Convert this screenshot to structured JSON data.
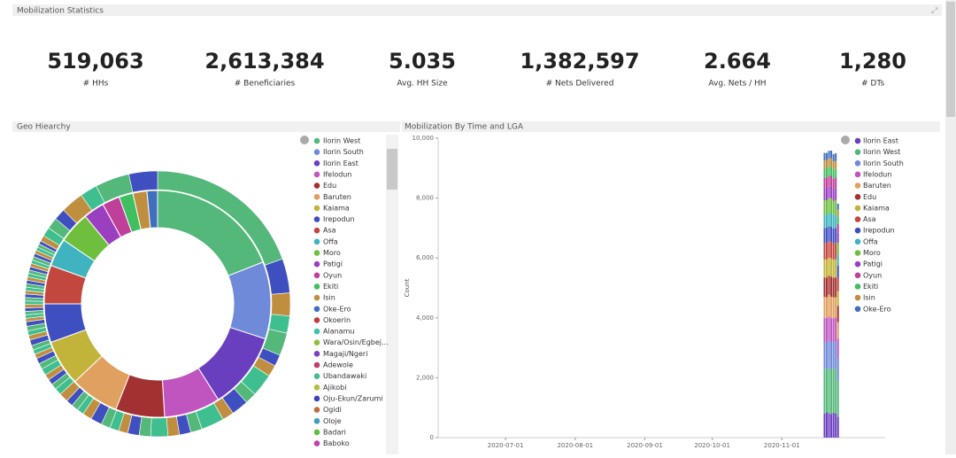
{
  "header": {
    "title": "Mobilization Statistics"
  },
  "metrics": [
    {
      "value": "519,063",
      "label": "# HHs"
    },
    {
      "value": "2,613,384",
      "label": "# Beneficiaries"
    },
    {
      "value": "5.035",
      "label": "Avg. HH Size"
    },
    {
      "value": "1,382,597",
      "label": "# Nets Delivered"
    },
    {
      "value": "2.664",
      "label": "Avg. Nets / HH"
    },
    {
      "value": "1,280",
      "label": "# DTs"
    }
  ],
  "donut": {
    "type": "pie",
    "title": "Geo Hiearchy",
    "slices": [
      {
        "name": "Ilorin West",
        "color": "#54b87a",
        "value": 19
      },
      {
        "name": "Ilorin South",
        "color": "#6f8ad8",
        "value": 11
      },
      {
        "name": "Ilorin East",
        "color": "#6a3fbf",
        "value": 11
      },
      {
        "name": "Ifelodun",
        "color": "#c055c0",
        "value": 8
      },
      {
        "name": "Edu",
        "color": "#a33131",
        "value": 7
      },
      {
        "name": "Baruten",
        "color": "#e0a060",
        "value": 7
      },
      {
        "name": "Kaiama",
        "color": "#c2b33a",
        "value": 6.5
      },
      {
        "name": "Irepodun",
        "color": "#3f4fbf",
        "value": 5.5
      },
      {
        "name": "Asa",
        "color": "#c2483f",
        "value": 5.5
      },
      {
        "name": "Offa",
        "color": "#3fb3bf",
        "value": 4
      },
      {
        "name": "Moro",
        "color": "#6fbf3f",
        "value": 4.5
      },
      {
        "name": "Patigi",
        "color": "#9a3fbf",
        "value": 3
      },
      {
        "name": "Oyun",
        "color": "#bf3f9a",
        "value": 2.5
      },
      {
        "name": "Ekiti",
        "color": "#3fbf5f",
        "value": 2
      },
      {
        "name": "Isin",
        "color": "#bf8f3f",
        "value": 2
      },
      {
        "name": "Oke-Ero",
        "color": "#3f6fbf",
        "value": 1.5
      }
    ],
    "wards": [
      {
        "name": "Okoerin",
        "color": "#bf3f3f"
      },
      {
        "name": "Alanamu",
        "color": "#3fbfaf"
      },
      {
        "name": "Wara/Osin/Egbej...",
        "color": "#8fbf3f"
      },
      {
        "name": "Magaji/Ngeri",
        "color": "#7f3fbf"
      },
      {
        "name": "Adewole",
        "color": "#bf3f6f"
      },
      {
        "name": "Ubandawaki",
        "color": "#3fbf8f"
      },
      {
        "name": "Ajikobi",
        "color": "#afbf3f"
      },
      {
        "name": "Oju-Ekun/Zarumi",
        "color": "#3f3fbf"
      },
      {
        "name": "Ogidi",
        "color": "#bf6f3f"
      },
      {
        "name": "Oloje",
        "color": "#3f9fbf"
      },
      {
        "name": "Badari",
        "color": "#5fbf3f"
      },
      {
        "name": "Baboko",
        "color": "#bf3faf"
      }
    ],
    "outer_values": [
      14,
      3,
      2,
      1.5,
      2,
      1,
      1,
      2,
      1,
      1.5,
      1,
      2,
      1,
      1,
      1,
      1.5,
      1,
      1,
      0.8,
      0.8,
      0.8,
      1,
      0.8,
      0.6,
      0.6,
      0.6,
      0.8,
      0.6,
      0.5,
      0.5,
      0.5,
      0.6,
      0.5,
      0.5,
      0.4,
      0.4,
      0.4,
      0.5,
      0.4,
      0.4,
      0.4,
      0.4,
      0.3,
      0.3,
      0.3,
      0.3,
      0.3,
      0.3,
      0.3,
      0.3,
      0.3,
      0.3,
      0.3,
      0.3,
      0.3,
      0.3,
      0.3,
      0.3,
      0.3,
      0.3,
      0.3,
      0.3,
      0.3,
      0.3,
      0.3,
      0.3,
      0.5,
      0.8,
      1,
      1,
      2,
      1.5,
      3,
      2.5
    ]
  },
  "bar_chart": {
    "type": "bar",
    "title": "Mobilization By Time and LGA",
    "y_label": "Count",
    "x": [
      "2020-11-20",
      "2020-11-21",
      "2020-11-22",
      "2020-11-23",
      "2020-11-24",
      "2020-11-25",
      "2020-11-26"
    ],
    "xlim": [
      "2020-06-01",
      "2020-12-17"
    ],
    "xticks": [
      "2020-07-01",
      "2020-08-01",
      "2020-09-01",
      "2020-10-01",
      "2020-11-01"
    ],
    "ylim": [
      0,
      10000
    ],
    "yticks": [
      0,
      {
        "value": 2000,
        "label": "2,000"
      },
      {
        "value": 4000,
        "label": "4,000"
      },
      {
        "value": 6000,
        "label": "6,000"
      },
      {
        "value": 8000,
        "label": "8,000"
      },
      {
        "value": 10000,
        "label": "10,000"
      }
    ],
    "series": [
      {
        "name": "Ilorin East",
        "color": "#6a3fbf",
        "values": [
          800,
          850,
          820,
          790,
          830,
          810,
          700
        ]
      },
      {
        "name": "Ilorin West",
        "color": "#54b87a",
        "values": [
          1500,
          1450,
          1520,
          1480,
          1490,
          1500,
          1200
        ]
      },
      {
        "name": "Ilorin South",
        "color": "#6f8ad8",
        "values": [
          900,
          880,
          920,
          910,
          890,
          900,
          750
        ]
      },
      {
        "name": "Ifelodun",
        "color": "#c055c0",
        "values": [
          800,
          820,
          790,
          810,
          780,
          800,
          650
        ]
      },
      {
        "name": "Baruten",
        "color": "#e0a060",
        "values": [
          700,
          690,
          720,
          710,
          700,
          680,
          560
        ]
      },
      {
        "name": "Edu",
        "color": "#a33131",
        "values": [
          650,
          660,
          640,
          670,
          650,
          660,
          540
        ]
      },
      {
        "name": "Kaiama",
        "color": "#c2b33a",
        "values": [
          600,
          610,
          590,
          620,
          600,
          610,
          490
        ]
      },
      {
        "name": "Asa",
        "color": "#c2483f",
        "values": [
          550,
          540,
          560,
          550,
          545,
          555,
          450
        ]
      },
      {
        "name": "Irepodun",
        "color": "#3f4fbf",
        "values": [
          500,
          510,
          495,
          505,
          500,
          490,
          410
        ]
      },
      {
        "name": "Offa",
        "color": "#3fb3bf",
        "values": [
          450,
          440,
          460,
          455,
          445,
          450,
          370
        ]
      },
      {
        "name": "Moro",
        "color": "#6fbf3f",
        "values": [
          480,
          470,
          490,
          485,
          475,
          480,
          390
        ]
      },
      {
        "name": "Patigi",
        "color": "#9a3fbf",
        "values": [
          400,
          410,
          390,
          405,
          395,
          400,
          330
        ]
      },
      {
        "name": "Oyun",
        "color": "#bf3f9a",
        "values": [
          350,
          340,
          360,
          355,
          345,
          350,
          290
        ]
      },
      {
        "name": "Ekiti",
        "color": "#3fbf5f",
        "values": [
          300,
          310,
          295,
          305,
          300,
          290,
          250
        ]
      },
      {
        "name": "Isin",
        "color": "#bf8f3f",
        "values": [
          280,
          290,
          275,
          285,
          280,
          270,
          230
        ]
      },
      {
        "name": "Oke-Ero",
        "color": "#3f6fbf",
        "values": [
          250,
          240,
          255,
          250,
          245,
          250,
          200
        ]
      }
    ]
  }
}
